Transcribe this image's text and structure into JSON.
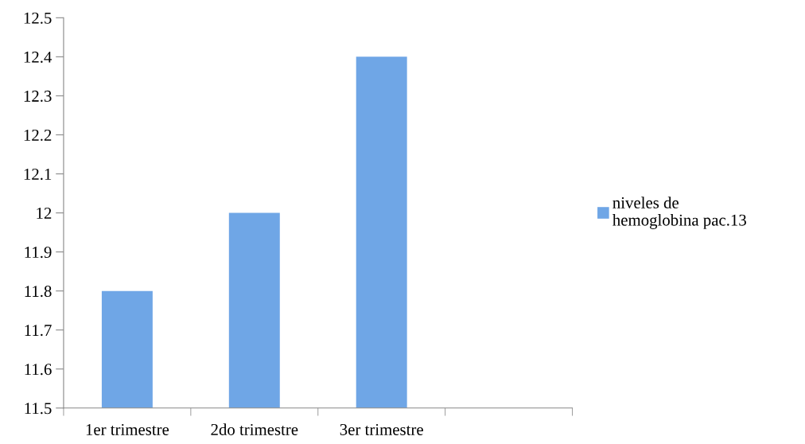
{
  "chart_data": {
    "type": "bar",
    "categories": [
      "1er trimestre",
      "2do trimestre",
      "3er trimestre",
      null
    ],
    "series": [
      {
        "name": "niveles de\nhemoglobina pac.13",
        "color": "#6fa6e6",
        "values": [
          11.8,
          12.0,
          12.4,
          null
        ]
      }
    ],
    "ylim": [
      11.5,
      12.5
    ],
    "yticks": [
      11.5,
      11.6,
      11.7,
      11.8,
      11.9,
      12,
      12.1,
      12.2,
      12.3,
      12.4,
      12.5
    ],
    "grid": false,
    "legend": "right"
  }
}
